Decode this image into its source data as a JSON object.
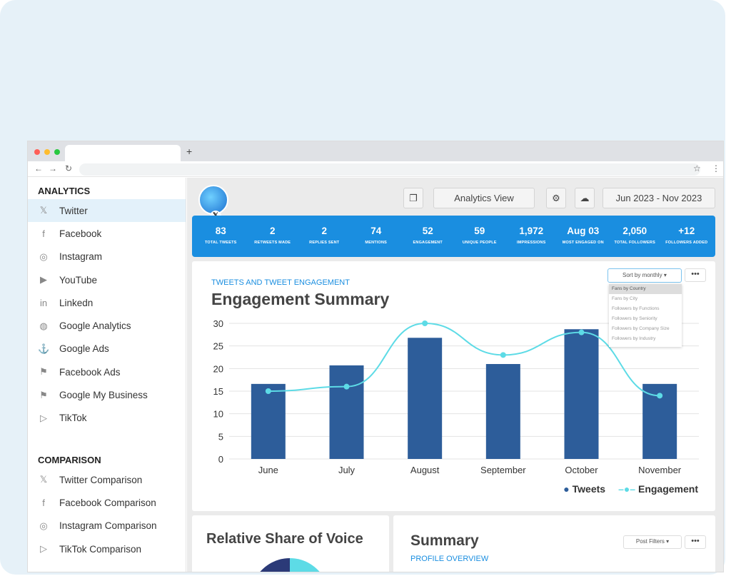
{
  "sidebar": {
    "analytics_heading": "ANALYTICS",
    "items": [
      {
        "label": "Twitter",
        "icon": "x-icon"
      },
      {
        "label": "Facebook",
        "icon": "facebook-icon"
      },
      {
        "label": "Instagram",
        "icon": "instagram-icon"
      },
      {
        "label": "YouTube",
        "icon": "youtube-icon"
      },
      {
        "label": "Linkedn",
        "icon": "linkedin-icon"
      },
      {
        "label": "Google Analytics",
        "icon": "globe-icon"
      },
      {
        "label": "Google Ads",
        "icon": "anchor-icon"
      },
      {
        "label": "Facebook Ads",
        "icon": "flag-icon"
      },
      {
        "label": "Google My Business",
        "icon": "flag-icon"
      },
      {
        "label": "TikTok",
        "icon": "play-icon"
      }
    ],
    "comparison_heading": "COMPARISON",
    "comparison": [
      {
        "label": "Twitter Comparison",
        "icon": "x-icon"
      },
      {
        "label": "Facebook Comparison",
        "icon": "facebook-icon"
      },
      {
        "label": "Instagram Comparison",
        "icon": "instagram-icon"
      },
      {
        "label": "TikTok Comparison",
        "icon": "play-icon"
      }
    ]
  },
  "header": {
    "view_label": "Analytics View",
    "date_range": "Jun 2023 - Nov 2023"
  },
  "stats": [
    {
      "v": "83",
      "l": "TOTAL TWEETS"
    },
    {
      "v": "2",
      "l": "RETWEETS MADE"
    },
    {
      "v": "2",
      "l": "REPLIES SENT"
    },
    {
      "v": "74",
      "l": "MENTIONS"
    },
    {
      "v": "52",
      "l": "ENGAGEMENT"
    },
    {
      "v": "59",
      "l": "UNIQUE PEOPLE"
    },
    {
      "v": "1,972",
      "l": "IMPRESSIONS"
    },
    {
      "v": "Aug 03",
      "l": "MOST ENGAGED ON"
    },
    {
      "v": "2,050",
      "l": "TOTAL FOLLOWERS"
    },
    {
      "v": "+12",
      "l": "FOLLOWERS ADDED"
    }
  ],
  "engagement": {
    "subtitle": "TWEETS AND TWEET ENGAGEMENT",
    "title": "Engagement Summary",
    "sort_label": "Sort by monthly",
    "more": "•••",
    "menu": [
      "Fans by Country",
      "Fans by City",
      "Followers by Functions",
      "Followers by Seniority",
      "Followers by Company Size",
      "Followers by Industry"
    ]
  },
  "chart_data": {
    "type": "bar",
    "categories": [
      "June",
      "July",
      "August",
      "September",
      "October",
      "November"
    ],
    "series": [
      {
        "name": "Tweets",
        "type": "bar",
        "values": [
          16.6,
          20.7,
          26.8,
          21,
          28.7,
          16.6
        ],
        "color": "#2d5d9a"
      },
      {
        "name": "Engagement",
        "type": "line",
        "values": [
          15,
          16,
          30,
          23,
          28,
          14
        ],
        "color": "#5ddbe6"
      }
    ],
    "ylim": [
      0,
      30
    ],
    "yticks": [
      0,
      5,
      10,
      15,
      20,
      25,
      30
    ],
    "legend": "bottom-right"
  },
  "share": {
    "title": "Relative Share of Voice"
  },
  "summary": {
    "title": "Summary",
    "subtitle": "PROFILE OVERVIEW",
    "filter_label": "Post Filters",
    "more": "•••"
  }
}
